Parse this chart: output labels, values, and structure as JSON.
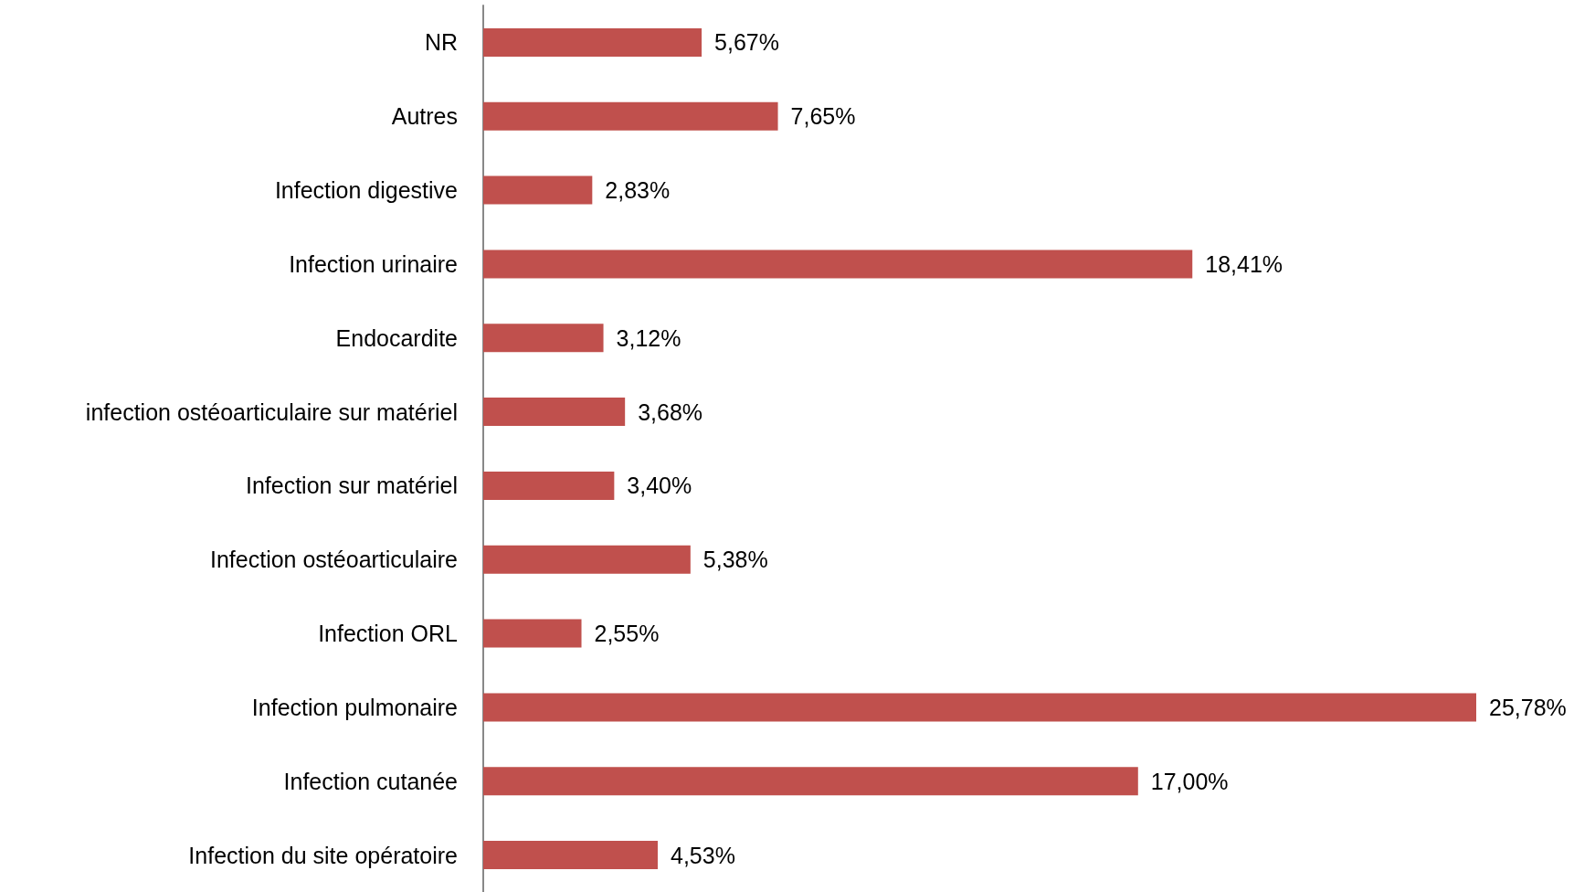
{
  "chart_data": {
    "type": "bar",
    "orientation": "horizontal",
    "categories": [
      "NR",
      "Autres",
      "Infection digestive",
      "Infection urinaire",
      "Endocardite",
      "infection ostéoarticulaire sur matériel",
      "Infection sur matériel",
      "Infection ostéoarticulaire",
      "Infection ORL",
      "Infection pulmonaire",
      "Infection cutanée",
      "Infection du site opératoire"
    ],
    "values": [
      5.67,
      7.65,
      2.83,
      18.41,
      3.12,
      3.68,
      3.4,
      5.38,
      2.55,
      25.78,
      17.0,
      4.53
    ],
    "value_labels": [
      "5,67%",
      "7,65%",
      "2,83%",
      "18,41%",
      "3,12%",
      "3,68%",
      "3,40%",
      "5,38%",
      "2,55%",
      "25,78%",
      "17,00%",
      "4,53%"
    ],
    "color": "#c0504d"
  }
}
